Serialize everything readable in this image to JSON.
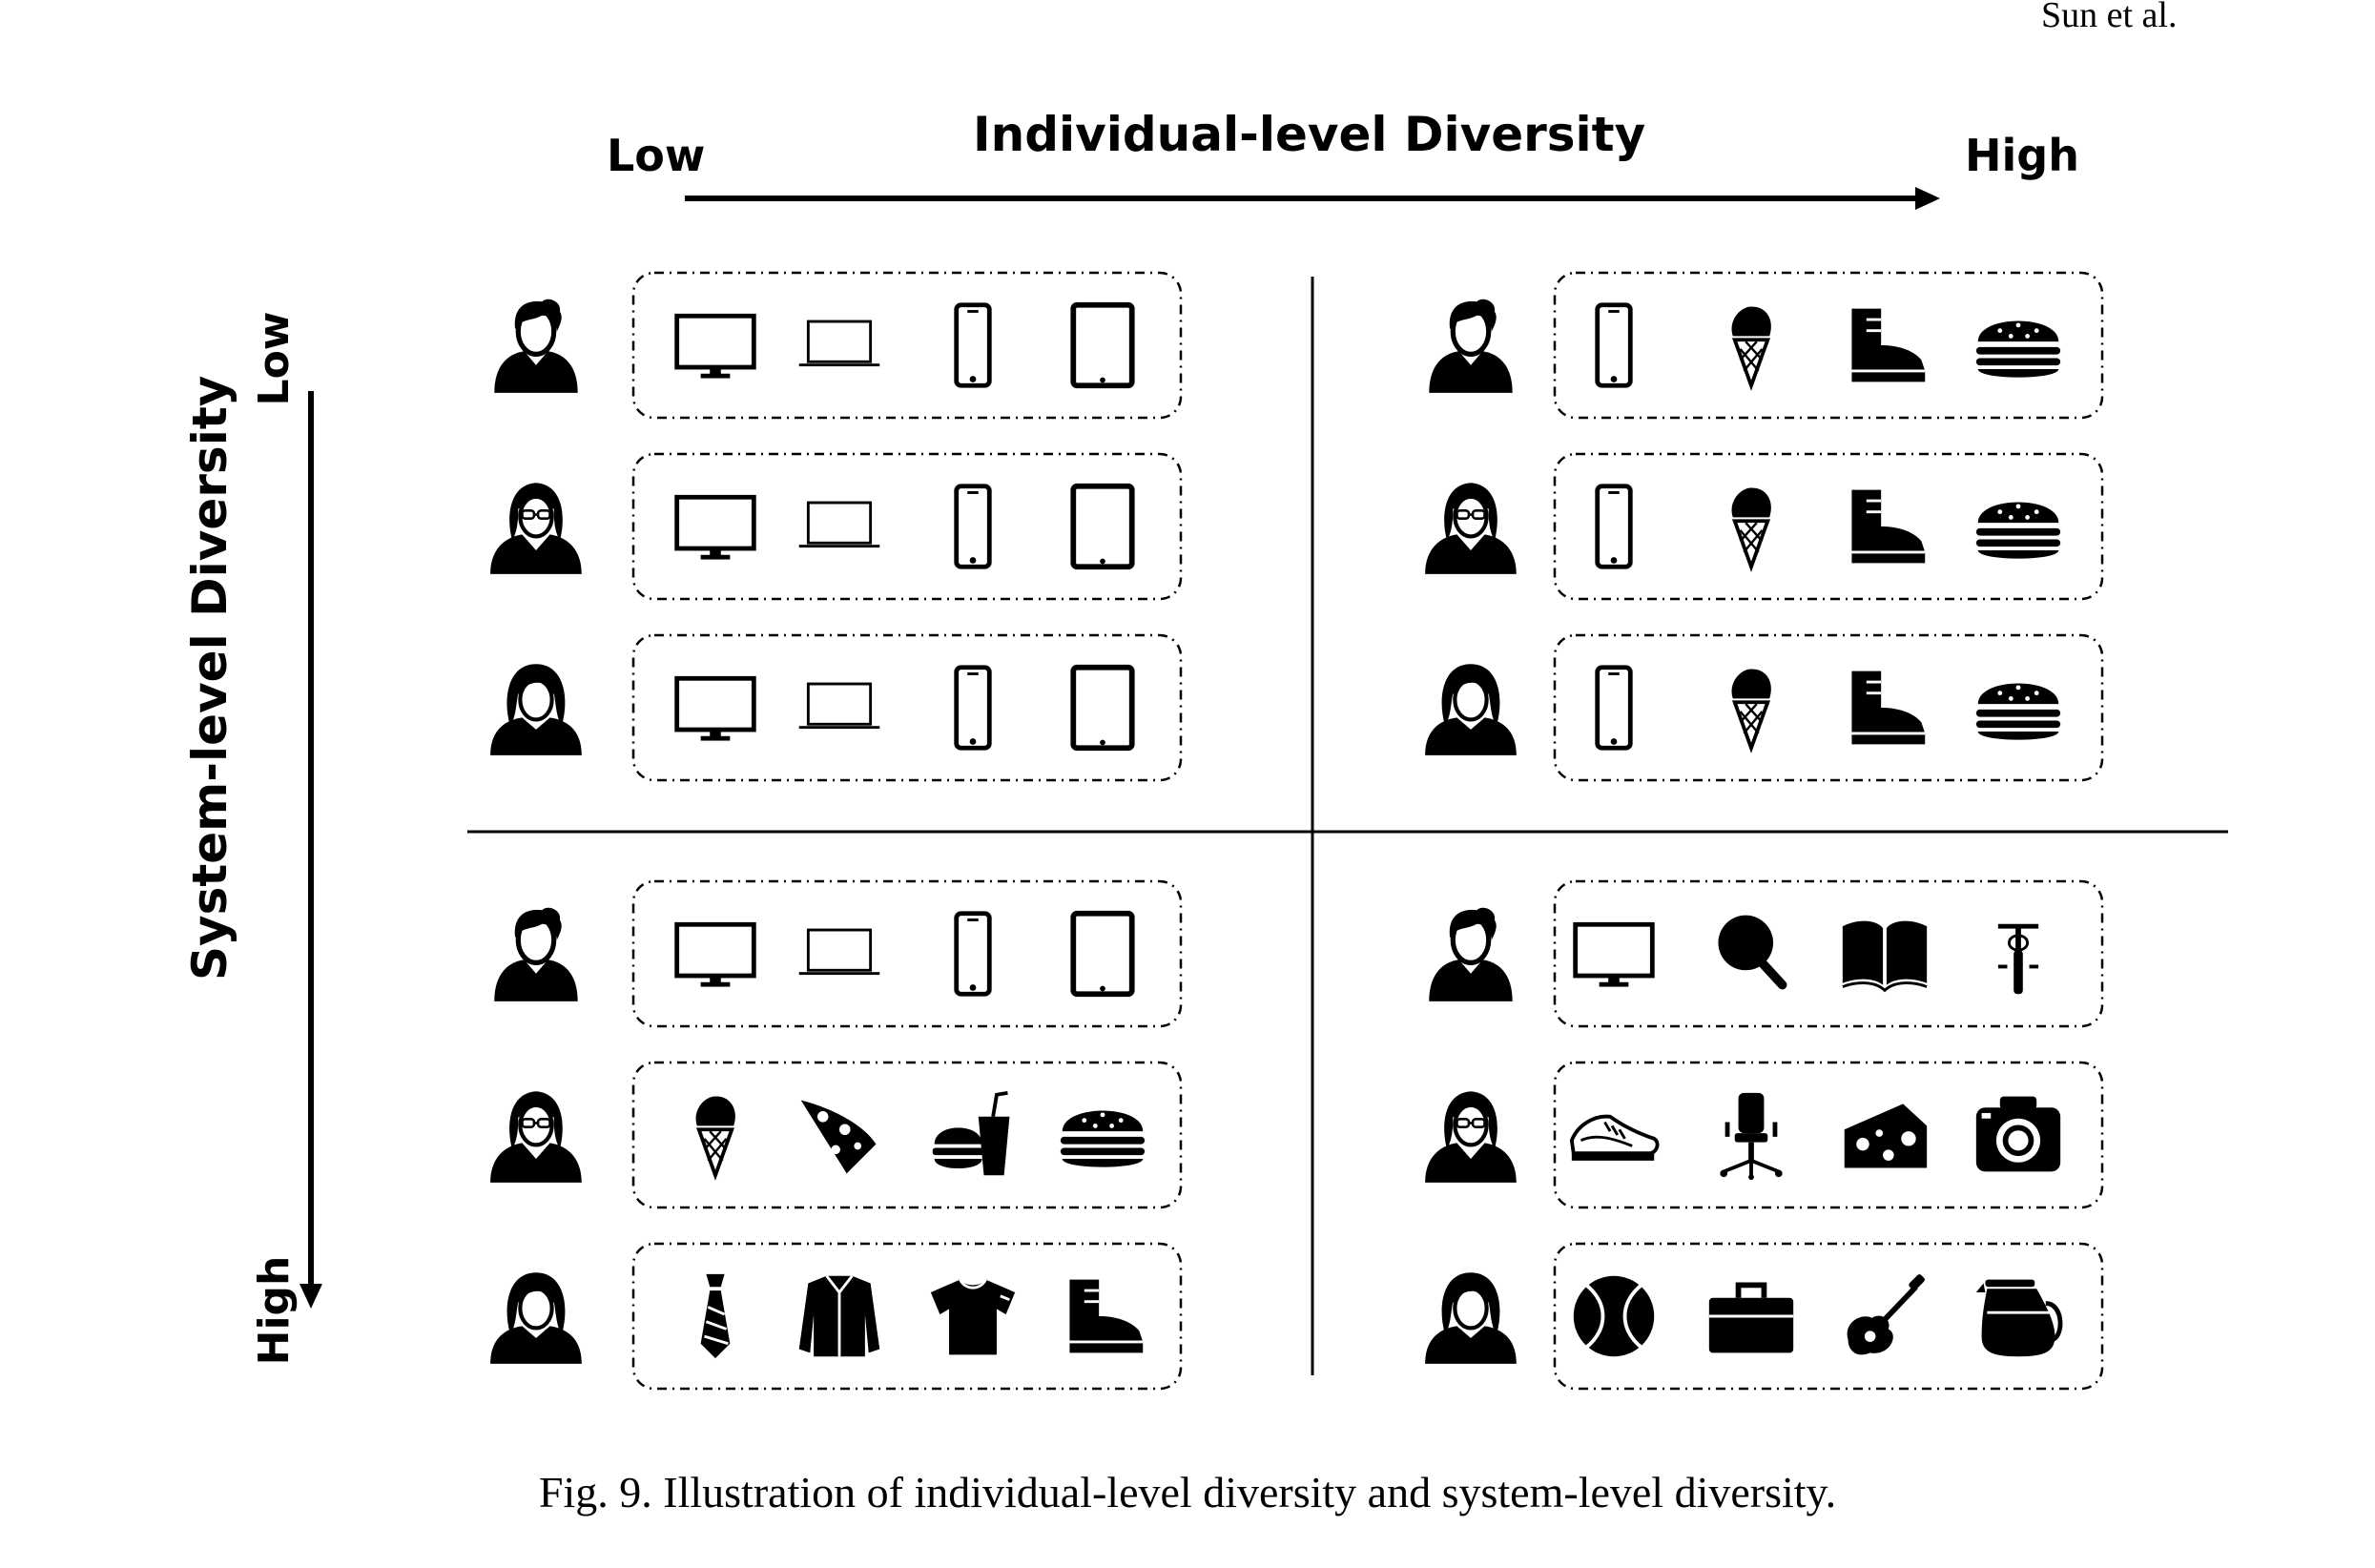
{
  "page_header": {
    "left": "",
    "right": "Sun et al."
  },
  "x_axis": {
    "title": "Individual-level Diversity",
    "low": "Low",
    "high": "High"
  },
  "y_axis": {
    "title": "System-level Diversity",
    "low": "Low",
    "high": "High"
  },
  "quadrants": {
    "top_left": [
      {
        "user": "user-man-icon",
        "items": [
          "desktop-monitor-icon",
          "laptop-icon",
          "smartphone-icon",
          "tablet-icon"
        ]
      },
      {
        "user": "user-woman-glasses-icon",
        "items": [
          "desktop-monitor-icon",
          "laptop-icon",
          "smartphone-icon",
          "tablet-icon"
        ]
      },
      {
        "user": "user-woman-icon",
        "items": [
          "desktop-monitor-icon",
          "laptop-icon",
          "smartphone-icon",
          "tablet-icon"
        ]
      }
    ],
    "top_right": [
      {
        "user": "user-man-icon",
        "items": [
          "smartphone-icon",
          "ice-cream-icon",
          "boot-icon",
          "burger-icon"
        ]
      },
      {
        "user": "user-woman-glasses-icon",
        "items": [
          "smartphone-icon",
          "ice-cream-icon",
          "boot-icon",
          "burger-icon"
        ]
      },
      {
        "user": "user-woman-icon",
        "items": [
          "smartphone-icon",
          "ice-cream-icon",
          "boot-icon",
          "burger-icon"
        ]
      }
    ],
    "bottom_left": [
      {
        "user": "user-man-icon",
        "items": [
          "desktop-monitor-icon",
          "laptop-icon",
          "smartphone-icon",
          "tablet-icon"
        ]
      },
      {
        "user": "user-woman-glasses-icon",
        "items": [
          "ice-cream-icon",
          "pizza-slice-icon",
          "fast-food-icon",
          "burger-icon"
        ]
      },
      {
        "user": "user-woman-icon",
        "items": [
          "tie-icon",
          "jacket-icon",
          "t-shirt-icon",
          "boot-icon"
        ]
      }
    ],
    "bottom_right": [
      {
        "user": "user-man-icon",
        "items": [
          "desktop-monitor-icon",
          "ping-pong-icon",
          "book-icon",
          "bicycle-icon"
        ]
      },
      {
        "user": "user-woman-glasses-icon",
        "items": [
          "sneaker-icon",
          "office-chair-icon",
          "cheese-icon",
          "camera-icon"
        ]
      },
      {
        "user": "user-woman-icon",
        "items": [
          "tennis-ball-icon",
          "briefcase-icon",
          "guitar-icon",
          "coffee-pot-icon"
        ]
      }
    ]
  },
  "caption": "Fig. 9.  Illustration of individual-level diversity and system-level diversity."
}
